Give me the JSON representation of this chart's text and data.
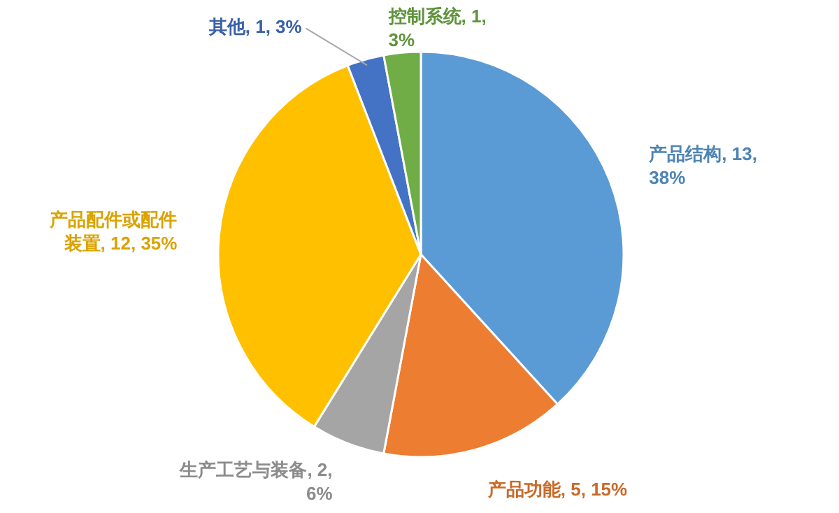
{
  "chart_data": {
    "type": "pie",
    "categories": [
      "产品结构",
      "产品功能",
      "生产工艺与装备",
      "产品配件或配件装置",
      "其他",
      "控制系统"
    ],
    "values": [
      13,
      5,
      2,
      12,
      1,
      1
    ],
    "value_labels": [
      "13, 38%",
      "5, 15%",
      "2, 6%",
      "12, 35%",
      "1, 3%",
      "1, 3%"
    ],
    "colors": [
      "#5b9bd5",
      "#ed7d31",
      "#a5a5a5",
      "#ffc000",
      "#4472c4",
      "#70ad47"
    ]
  }
}
